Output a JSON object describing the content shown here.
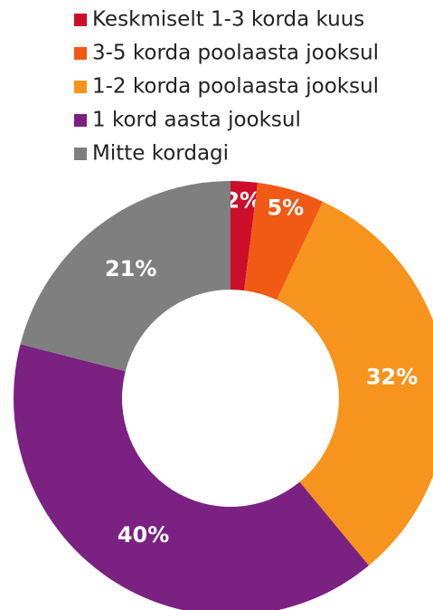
{
  "chart_data": {
    "type": "pie",
    "categories": [
      "Keskmiselt 1-3 korda kuus",
      "3-5 korda poolaasta jooksul",
      "1-2 korda poolaasta jooksul",
      "1 kord aasta jooksul",
      "Mitte kordagi"
    ],
    "values": [
      2,
      5,
      32,
      40,
      21
    ],
    "value_labels": [
      "2%",
      "5%",
      "32%",
      "40%",
      "21%"
    ],
    "colors": [
      "#cc0e2a",
      "#f05a14",
      "#f7941d",
      "#7b2182",
      "#7f7f7f"
    ],
    "legend": "top"
  }
}
